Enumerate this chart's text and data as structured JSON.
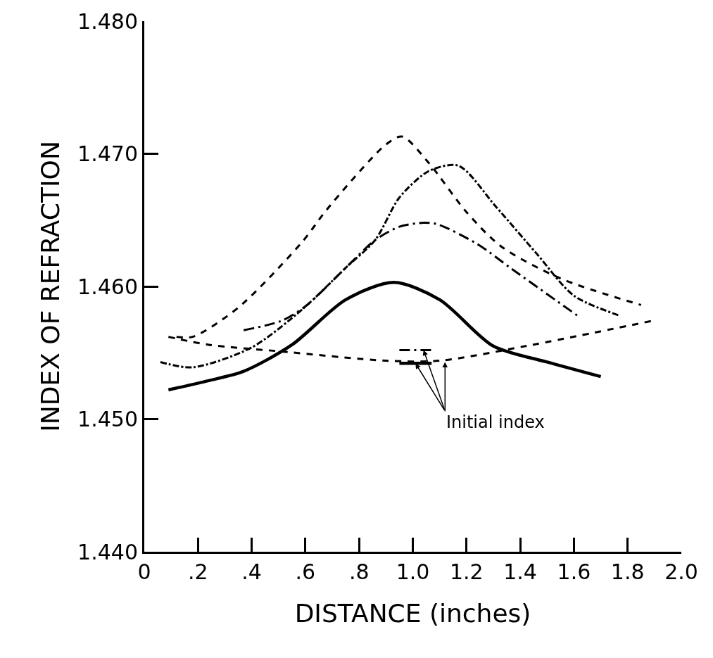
{
  "chart_data": {
    "type": "line",
    "xlabel": "DISTANCE (inches)",
    "ylabel": "INDEX OF REFRACTION",
    "xlim": [
      0,
      2.0
    ],
    "ylim": [
      1.44,
      1.48
    ],
    "xticks": [
      0,
      {
        "value": 0.2,
        "label": ".2"
      },
      {
        "value": 0.4,
        "label": ".4"
      },
      {
        "value": 0.6,
        "label": ".6"
      },
      {
        "value": 0.8,
        "label": ".8"
      },
      {
        "value": 1.0,
        "label": "1.0"
      },
      {
        "value": 1.2,
        "label": "1.2"
      },
      {
        "value": 1.4,
        "label": "1.4"
      },
      {
        "value": 1.6,
        "label": "1.6"
      },
      {
        "value": 1.8,
        "label": "1.8"
      },
      {
        "value": 2.0,
        "label": "2.0"
      }
    ],
    "yticks": [
      {
        "value": 1.44,
        "label": "1.440"
      },
      {
        "value": 1.45,
        "label": "1.450"
      },
      {
        "value": 1.46,
        "label": "1.460"
      },
      {
        "value": 1.47,
        "label": "1.470"
      },
      {
        "value": 1.48,
        "label": "1.480"
      }
    ],
    "marker": "none",
    "series": [
      {
        "color": "#000000",
        "line_style": "solid",
        "x": [
          0.09,
          0.24,
          0.37,
          0.55,
          0.75,
          0.93,
          1.1,
          1.3,
          1.5,
          1.7
        ],
        "values": [
          1.4522,
          1.4529,
          1.4536,
          1.4556,
          1.459,
          1.4603,
          1.459,
          1.4555,
          1.4543,
          1.4532
        ]
      },
      {
        "color": "#000000",
        "line_style": "dash",
        "x": [
          0.12,
          0.18,
          0.35,
          0.59,
          0.68,
          0.9,
          0.96,
          1.06,
          1.2,
          1.33,
          1.55,
          1.85
        ],
        "values": [
          1.4562,
          1.4562,
          1.4584,
          1.4634,
          1.4658,
          1.4707,
          1.4713,
          1.4693,
          1.4656,
          1.463,
          1.4606,
          1.4586
        ]
      },
      {
        "color": "#000000",
        "line_style": "dashdot",
        "x": [
          0.06,
          0.18,
          0.4,
          0.59,
          0.75,
          0.86,
          0.95,
          1.06,
          1.17,
          1.31,
          1.46,
          1.6,
          1.77
        ],
        "values": [
          1.4543,
          1.4539,
          1.4554,
          1.4583,
          1.4614,
          1.4635,
          1.4667,
          1.4687,
          1.4691,
          1.466,
          1.4625,
          1.4593,
          1.4578
        ]
      },
      {
        "color": "#000000",
        "line_style": "longdashdot",
        "x": [
          0.37,
          0.51,
          0.6,
          0.75,
          0.86,
          0.95,
          1.04,
          1.09,
          1.24,
          1.37,
          1.62
        ],
        "values": [
          1.4567,
          1.4574,
          1.4585,
          1.4614,
          1.4635,
          1.4645,
          1.4648,
          1.4647,
          1.4632,
          1.4613,
          1.4577
        ]
      },
      {
        "color": "#000000",
        "line_style": "dash",
        "x": [
          0.09,
          0.24,
          0.51,
          0.9,
          1.1,
          1.42,
          1.89
        ],
        "values": [
          1.4562,
          1.4556,
          1.4551,
          1.4544,
          1.4544,
          1.4555,
          1.4574
        ]
      },
      {
        "color": "#000000",
        "line_style": "solid",
        "x": [
          0.95,
          1.07
        ],
        "values": [
          1.4542,
          1.4542
        ]
      },
      {
        "color": "#000000",
        "line_style": "longdashdot",
        "x": [
          0.95,
          1.07
        ],
        "values": [
          1.4552,
          1.4552
        ]
      }
    ],
    "annotations": [
      {
        "text": "Initial index",
        "x": 1.12,
        "y": 1.4543
      }
    ]
  }
}
